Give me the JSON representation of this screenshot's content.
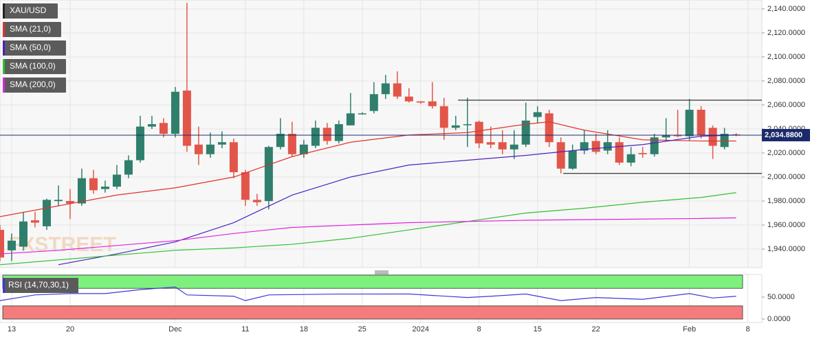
{
  "chart_data": [
    {
      "type": "candlestick",
      "symbol": "XAU/USD",
      "watermark": "FXSTREET",
      "x": [
        -1,
        0,
        1,
        2,
        3,
        4,
        5,
        6,
        7,
        8,
        9,
        10,
        11,
        12,
        13,
        14,
        15,
        16,
        17,
        18,
        19,
        20,
        21,
        22,
        23,
        24,
        25,
        26,
        27,
        28,
        29,
        30,
        31,
        32,
        33,
        34,
        35,
        36,
        37,
        38,
        39,
        40,
        41,
        42,
        43,
        44,
        45,
        46,
        47,
        48,
        49,
        50,
        51,
        52,
        53,
        54,
        55,
        56,
        57,
        58,
        59,
        60,
        61,
        62
      ],
      "open": [
        1956,
        1939,
        1942,
        1964,
        1959,
        1980,
        1980,
        1978,
        1999,
        1990,
        1992,
        2002,
        2014,
        2042,
        2045,
        2036,
        2072,
        2027,
        2019,
        2027,
        2029,
        2004,
        1981,
        1980,
        2025,
        2036,
        2019,
        2026,
        2041,
        2030,
        2043,
        2053,
        2055,
        2069,
        2078,
        2067,
        2063,
        2063,
        2059,
        2041,
        2044,
        2046,
        2029,
        2029,
        2023,
        2027,
        2050,
        2053,
        2029,
        2007,
        2022,
        2030,
        2022,
        2029,
        2012,
        2020,
        2019,
        2033,
        2035,
        2034,
        2056,
        2041,
        2025,
        2035.5
      ],
      "high": [
        1960,
        1953,
        1971,
        1971,
        1982,
        1993,
        1990,
        2007,
        2006,
        1997,
        2010,
        2018,
        2051,
        2051,
        2049,
        2075,
        2145,
        2042,
        2037,
        2038,
        2032,
        2006,
        1986,
        2026,
        2049,
        2046,
        2031,
        2047,
        2045,
        2047,
        2070,
        2054,
        2079,
        2085,
        2088,
        2074,
        2063,
        2079,
        2066,
        2051,
        2066,
        2047,
        2042,
        2039,
        2039,
        2062,
        2059,
        2056,
        2033,
        2027,
        2039,
        2036,
        2039,
        2033,
        2025,
        2025,
        2036,
        2049,
        2056,
        2065,
        2059,
        2043,
        2041,
        2036.5
      ],
      "low": [
        1930,
        1930,
        1939,
        1958,
        1956,
        1976,
        1965,
        1976,
        1986,
        1987,
        1990,
        1999,
        2012,
        2040,
        2033,
        2033,
        2021,
        2010,
        2016,
        2024,
        1999,
        1976,
        1976,
        1973,
        2023,
        2017,
        2016,
        2024,
        2027,
        2028,
        2043,
        2052,
        2053,
        2065,
        2065,
        2062,
        2061,
        2057,
        2031,
        2039,
        2025,
        2024,
        2024,
        2019,
        2015,
        2025,
        2045,
        2025,
        2003,
        2006,
        2019,
        2019,
        2019,
        2010,
        2009,
        2016,
        2017,
        2030,
        2033,
        2030,
        2032,
        2015,
        2023,
        2034
      ],
      "close": [
        1933,
        1947,
        1963,
        1962,
        1981,
        1981,
        1978,
        1999,
        1989,
        1992,
        2002,
        2014,
        2042,
        2044,
        2036,
        2071,
        2026,
        2019,
        2027,
        2029,
        2004,
        1981,
        1979,
        2025,
        2036,
        2019,
        2027,
        2041,
        2030,
        2044,
        2053,
        2053,
        2069,
        2078,
        2067,
        2063,
        2062,
        2059,
        2041,
        2043,
        2044,
        2028,
        2027,
        2023,
        2027,
        2047,
        2054,
        2029,
        2007,
        2022,
        2029,
        2021,
        2029,
        2012,
        2019,
        2019,
        2033,
        2035,
        2034,
        2056,
        2035,
        2026,
        2036,
        2034.88
      ],
      "up_color": "#2f7f6c",
      "down_color": "#e2564a",
      "series": [
        {
          "name": "SMA (21,0)",
          "color": "#e0322a",
          "x": [
            -1,
            4,
            9,
            14,
            19,
            24,
            29,
            34,
            39,
            44,
            46,
            49,
            54,
            59,
            62
          ],
          "values": [
            1967,
            1976,
            1985,
            1991,
            2000,
            2017,
            2029,
            2035,
            2037,
            2044,
            2046,
            2039,
            2031,
            2030,
            2030
          ]
        },
        {
          "name": "SMA (50,0)",
          "color": "#4b22c0",
          "x": [
            4,
            9,
            14,
            19,
            24,
            29,
            34,
            39,
            44,
            49,
            54,
            59,
            62
          ],
          "values": [
            1927,
            1936,
            1946,
            1962,
            1985,
            2000,
            2010,
            2014,
            2018,
            2023,
            2027,
            2034,
            2035
          ]
        },
        {
          "name": "SMA (100,0)",
          "color": "#2fbf2f",
          "x": [
            -1,
            4,
            9,
            14,
            19,
            24,
            29,
            34,
            39,
            44,
            49,
            54,
            59,
            62
          ],
          "values": [
            1927,
            1931,
            1935,
            1939,
            1941,
            1944,
            1949,
            1956,
            1963,
            1970,
            1974,
            1979,
            1983,
            1987
          ]
        },
        {
          "name": "SMA (200,0)",
          "color": "#e020e0",
          "x": [
            -1,
            4,
            9,
            14,
            19,
            24,
            29,
            34,
            39,
            44,
            49,
            54,
            59,
            62
          ],
          "values": [
            1936,
            1939,
            1943,
            1947,
            1953,
            1958,
            1960,
            1962,
            1963,
            1964,
            1964.5,
            1965,
            1965.5,
            1966
          ]
        }
      ],
      "lines": [
        {
          "value": 2064,
          "from": 38.2,
          "color": "#333333"
        },
        {
          "value": 2003,
          "from": 47.2,
          "color": "#333333"
        }
      ],
      "price_line": {
        "value": 2034.88,
        "label": "2,034.8800",
        "color": "#1b2a6b"
      },
      "xlim": [
        -1,
        64.2
      ],
      "xticks": [
        {
          "value": 0,
          "label": "13"
        },
        {
          "value": 5,
          "label": "20"
        },
        {
          "value": 14,
          "label": "Dec"
        },
        {
          "value": 20,
          "label": "11"
        },
        {
          "value": 25,
          "label": "18"
        },
        {
          "value": 30,
          "label": "25"
        },
        {
          "value": 35,
          "label": "2024"
        },
        {
          "value": 40,
          "label": "8"
        },
        {
          "value": 45,
          "label": "15"
        },
        {
          "value": 50,
          "label": "22"
        },
        {
          "value": 58,
          "label": "Feb"
        },
        {
          "value": 63,
          "label": "8"
        }
      ],
      "ylim": [
        1924.6,
        2147.4
      ],
      "yticks": [
        {
          "value": 1940,
          "label": "1,940.0000"
        },
        {
          "value": 1960,
          "label": "1,960.0000"
        },
        {
          "value": 1980,
          "label": "1,980.0000"
        },
        {
          "value": 2000,
          "label": "2,000.0000"
        },
        {
          "value": 2020,
          "label": "2,020.0000"
        },
        {
          "value": 2040,
          "label": "2,040.0000"
        },
        {
          "value": 2060,
          "label": "2,060.0000"
        },
        {
          "value": 2080,
          "label": "2,080.0000"
        },
        {
          "value": 2100,
          "label": "2,100.0000"
        },
        {
          "value": 2120,
          "label": "2,120.0000"
        },
        {
          "value": 2140,
          "label": "2,140.0000"
        }
      ],
      "grid": true
    },
    {
      "type": "line",
      "series": [
        {
          "name": "RSI (14,70,30,1)",
          "color": "#3a3ad8",
          "x": [
            -1,
            2,
            5,
            8,
            11,
            14,
            15,
            19,
            20,
            22,
            28,
            34,
            39,
            41,
            44,
            47,
            50,
            54,
            58,
            60,
            62
          ],
          "values": [
            42,
            55,
            58,
            58,
            67,
            73,
            55,
            52,
            42,
            55,
            57,
            57,
            49,
            52,
            57,
            42,
            49,
            45,
            58,
            48,
            52
          ]
        }
      ],
      "bands": [
        {
          "from": 70,
          "to": 100,
          "color": "#7ef07e"
        },
        {
          "from": 0,
          "to": 30,
          "color": "#f47c7c"
        }
      ],
      "xlim": [
        -1,
        64.2
      ],
      "ylim": [
        -7.8,
        101.6
      ],
      "yticks": [
        {
          "value": 0,
          "label": "0.0000"
        },
        {
          "value": 50,
          "label": "50.0000"
        }
      ]
    }
  ]
}
